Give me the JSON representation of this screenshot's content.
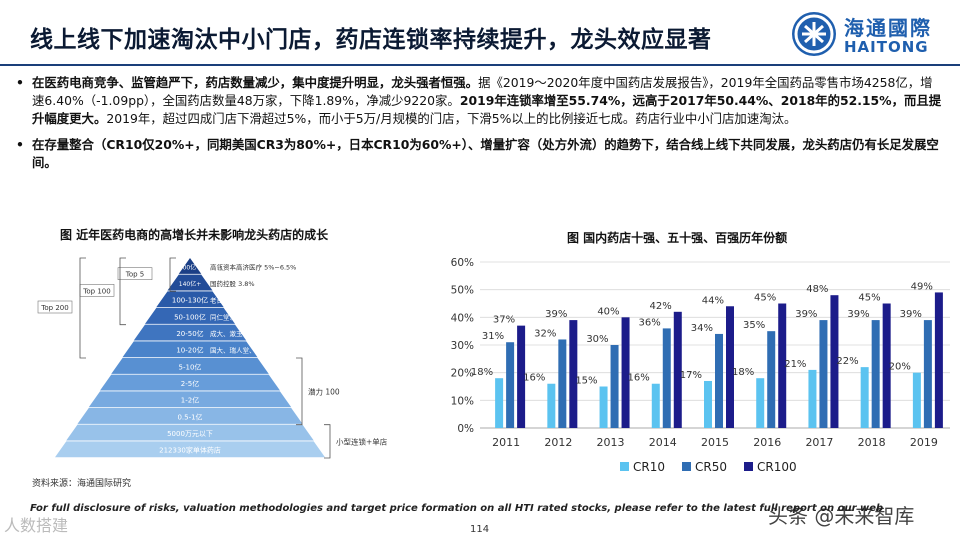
{
  "title": "线上线下加速淘汰中小门店，药店连锁率持续提升，龙头效应显著",
  "logo": {
    "cn": "海通國際",
    "en": "HAITONG"
  },
  "bullets": [
    {
      "p1": "在医药电商竞争、监管趋严下，药店数量减少，集中度提升明显，龙头强者恒强。",
      "p2": "据《2019～2020年度中国药店发展报告》，2019年全国药品零售市场4258亿，增速6.40%（-1.09pp），全国药店数量48万家，下降1.89%，净减少9220家。",
      "p3": "2019年连锁率增至55.74%，远高于2017年50.44%、2018年的52.15%，而且提升幅度更大。",
      "p4": "2019年，超过四成门店下滑超过5%，而小于5万/月规模的门店，下滑5%以上的比例接近七成。药店行业中小门店加速淘汰。"
    },
    {
      "p1": "在存量整合（CR10仅20%+，同期美国CR3为80%+，日本CR10为60%+）、增量扩容（处方外流）的趋势下，结合线上线下共同发展，龙头药店仍有长足发展空间。"
    }
  ],
  "left_figure": {
    "caption": "图 近年医药电商的高增长并未影响龙头药店的成长",
    "tiers": [
      {
        "label": "200亿+",
        "desc": "高瓴资本高济医疗 5%~6.5%"
      },
      {
        "label": "140亿+",
        "desc": "国药控股 3.8%"
      },
      {
        "label": "100-130亿",
        "desc": "老百姓、一心堂、大参林、益丰"
      },
      {
        "label": "50-100亿",
        "desc": "同仁堂、上药系、华润、众友、海王星辰"
      },
      {
        "label": "20-50亿",
        "desc": "成大、漱玉平民、健之佳、怡康、一树、九州通好药师"
      },
      {
        "label": "10-20亿",
        "desc": "国大、瑞人堂、金日康医、张仲景、怀仁、神威"
      },
      {
        "label": "5-10亿",
        "desc": ""
      },
      {
        "label": "2-5亿",
        "desc": ""
      },
      {
        "label": "1-2亿",
        "desc": ""
      },
      {
        "label": "0.5-1亿",
        "desc": ""
      },
      {
        "label": "5000万元以下",
        "desc": ""
      },
      {
        "label": "212330家单体药店",
        "desc": ""
      }
    ],
    "brackets": {
      "top5": "Top 5",
      "top100": "Top 100",
      "top200": "Top 200",
      "potential": "潜力 100",
      "small": "小型连锁+单店"
    },
    "source": "资料来源：海通国际研究"
  },
  "chart_data": {
    "type": "bar",
    "title": "图 国内药店十强、五十强、百强历年份额",
    "categories": [
      "2011",
      "2012",
      "2013",
      "2014",
      "2015",
      "2016",
      "2017",
      "2018",
      "2019"
    ],
    "series": [
      {
        "name": "CR10",
        "color": "#5bc3f0",
        "values": [
          18,
          16,
          15,
          16,
          17,
          18,
          21,
          22,
          20
        ]
      },
      {
        "name": "CR50",
        "color": "#2f6db3",
        "values": [
          31,
          32,
          30,
          36,
          34,
          35,
          39,
          39,
          39
        ]
      },
      {
        "name": "CR100",
        "color": "#1c1c8a",
        "values": [
          37,
          39,
          40,
          42,
          44,
          45,
          48,
          45,
          49
        ]
      }
    ],
    "ylim": [
      0,
      60
    ],
    "yticks": [
      "0%",
      "10%",
      "20%",
      "30%",
      "40%",
      "50%",
      "60%"
    ],
    "grid": true,
    "legend": "bottom"
  },
  "footer": {
    "disclaimer": "For full disclosure of risks, valuation methodologies and target price formation on all HTI rated stocks, please refer to the latest full report on our web",
    "page": "114",
    "wm_left": "人数搭建",
    "wm_right": "头条 @未来智库"
  }
}
